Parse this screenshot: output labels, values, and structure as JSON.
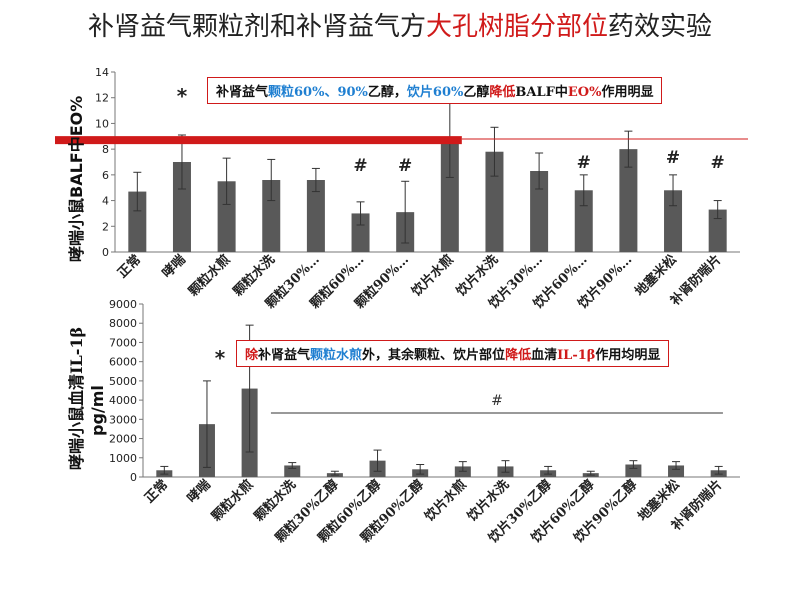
{
  "title": {
    "part1": "补肾益气颗粒剂和补肾益气方",
    "highlight": "大孔树脂分部位",
    "part2": "药效实验"
  },
  "callout_top": {
    "t1": "补肾益气",
    "t2": "颗粒60%、90%",
    "t3": "乙醇，",
    "t4": "饮片60%",
    "t5": "乙醇",
    "t6": "降低",
    "t7": "BALF中",
    "t8": "EO%",
    "t9": "作用明显"
  },
  "callout_bottom": {
    "t1": "除",
    "t2": "补肾益气",
    "t3": "颗粒水煎",
    "t4": "外，其余颗粒、饮片部位",
    "t5": "降低",
    "t6": "血清",
    "t7": "IL-1β",
    "t8": "作用均明显"
  },
  "colors": {
    "bar": "#595959",
    "accent_red": "#d01a1a",
    "accent_blue": "#1f7fd1"
  },
  "chart_data": [
    {
      "type": "bar",
      "ylabel": "哮喘小鼠BALF中EO%",
      "ylim": [
        0,
        14
      ],
      "yticks": [
        0,
        2,
        4,
        6,
        8,
        10,
        12,
        14
      ],
      "categories": [
        "正常",
        "哮喘",
        "颗粒水煎",
        "颗粒水洗",
        "颗粒30%…",
        "颗粒60%…",
        "颗粒90%…",
        "饮片水煎",
        "饮片水洗",
        "饮片30%…",
        "饮片60%…",
        "饮片90%…",
        "地塞米松",
        "补肾防喘片"
      ],
      "values": [
        4.7,
        7.0,
        5.5,
        5.6,
        5.6,
        3.0,
        3.1,
        8.7,
        7.8,
        6.3,
        4.8,
        8.0,
        4.8,
        3.3
      ],
      "errors": [
        1.5,
        2.1,
        1.8,
        1.6,
        0.9,
        0.9,
        2.4,
        2.9,
        1.9,
        1.4,
        1.2,
        1.4,
        1.2,
        0.7
      ],
      "annotations": [
        {
          "index": 1,
          "text": "*"
        },
        {
          "index": 5,
          "text": "#"
        },
        {
          "index": 6,
          "text": "#"
        },
        {
          "index": 10,
          "text": "#"
        },
        {
          "index": 12,
          "text": "#"
        },
        {
          "index": 13,
          "text": "#"
        }
      ],
      "reference_line": 8.7
    },
    {
      "type": "bar",
      "ylabel": "哮喘小鼠血清IL-1β",
      "ylabel_unit": "pg/ml",
      "ylim": [
        0,
        9000
      ],
      "yticks": [
        0,
        1000,
        2000,
        3000,
        4000,
        5000,
        6000,
        7000,
        8000,
        9000
      ],
      "categories": [
        "正常",
        "哮喘",
        "颗粒水煎",
        "颗粒水洗",
        "颗粒30%乙醇",
        "颗粒60%乙醇",
        "颗粒90%乙醇",
        "饮片水煎",
        "饮片水洗",
        "饮片30%乙醇",
        "饮片60%乙醇",
        "饮片90%乙醇",
        "地塞米松",
        "补肾防喘片"
      ],
      "values": [
        350,
        2750,
        4600,
        600,
        200,
        850,
        400,
        550,
        550,
        350,
        200,
        650,
        600,
        350
      ],
      "errors": [
        200,
        2250,
        3300,
        150,
        100,
        550,
        250,
        250,
        300,
        200,
        100,
        200,
        200,
        200
      ],
      "annotations": [
        {
          "index": 1,
          "text": "*"
        },
        {
          "range": [
            3,
            13
          ],
          "text": "#"
        }
      ]
    }
  ]
}
